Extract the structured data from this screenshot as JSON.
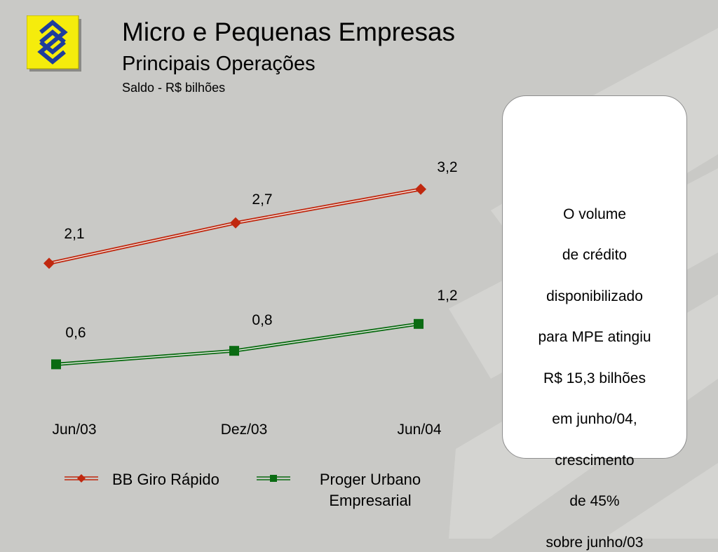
{
  "slide": {
    "title": "Micro e Pequenas Empresas",
    "subtitle": "Principais Operações",
    "unit": "Saldo - R$ bilhões"
  },
  "note": {
    "lines": [
      "O volume",
      "de crédito",
      "disponibilizado",
      "para MPE atingiu",
      "R$ 15,3 bilhões",
      "em junho/04,",
      "crescimento",
      "de  45%",
      "sobre junho/03"
    ]
  },
  "legend": {
    "items": [
      {
        "label": "BB Giro Rápido"
      },
      {
        "label": "Proger Urbano Empresarial",
        "lines": [
          "Proger Urbano",
          "Empresarial"
        ]
      }
    ]
  },
  "colors": {
    "background": "#c9c9c6",
    "series_red": "#c0280f",
    "series_green": "#0a6b12",
    "logo_yellow": "#f5ec0c",
    "logo_blue": "#1f3d9c"
  },
  "chart_data": {
    "type": "line",
    "title": "",
    "xlabel": "",
    "ylabel": "",
    "categories": [
      "Jun/03",
      "Dez/03",
      "Jun/04"
    ],
    "series": [
      {
        "name": "BB Giro Rápido",
        "values": [
          2.1,
          2.7,
          3.2
        ],
        "labels": [
          "2,1",
          "2,7",
          "3,2"
        ],
        "color": "#c0280f",
        "marker": "diamond"
      },
      {
        "name": "Proger Urbano Empresarial",
        "values": [
          0.6,
          0.8,
          1.2
        ],
        "labels": [
          "0,6",
          "0,8",
          "1,2"
        ],
        "color": "#0a6b12",
        "marker": "square"
      }
    ],
    "grid": false,
    "legend_position": "bottom"
  }
}
